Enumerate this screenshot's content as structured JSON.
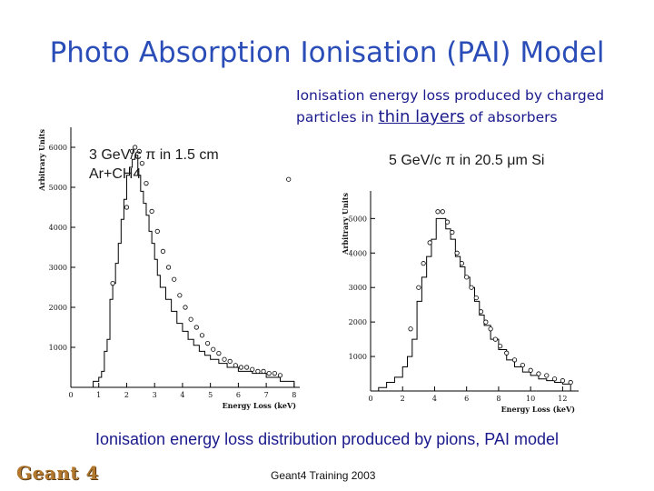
{
  "slide": {
    "title": "Photo Absorption Ionisation (PAI) Model",
    "subtitle_line1": "Ionisation energy loss produced by charged",
    "subtitle_line2_pre": "particles in ",
    "subtitle_line2_highlight": "thin layers",
    "subtitle_line2_post": " of  absorbers",
    "caption": "Ionisation energy loss distribution produced by pions, PAI model",
    "footer": "Geant4 Training 2003",
    "logo": "Geant 4"
  },
  "chart_data": [
    {
      "type": "histogram",
      "label_line1": "3 GeV/c π in 1.5 cm",
      "label_line2": "Ar+CH4",
      "xlabel": "Energy Loss (keV)",
      "ylabel": "Arbitrary Units",
      "xlim": [
        0,
        8.2
      ],
      "ylim": [
        0,
        6500
      ],
      "x_ticks": [
        0,
        1,
        2,
        3,
        4,
        5,
        6,
        7,
        8
      ],
      "y_ticks": [
        1000,
        2000,
        3000,
        4000,
        5000,
        6000
      ],
      "series": [
        {
          "style": "histogram-step",
          "bin_edges": [
            0.8,
            1.0,
            1.1,
            1.2,
            1.3,
            1.4,
            1.5,
            1.6,
            1.7,
            1.8,
            1.9,
            2.0,
            2.1,
            2.2,
            2.3,
            2.4,
            2.5,
            2.6,
            2.7,
            2.8,
            2.9,
            3.0,
            3.1,
            3.2,
            3.4,
            3.6,
            3.8,
            4.0,
            4.2,
            4.4,
            4.6,
            4.8,
            5.0,
            5.3,
            5.6,
            6.0,
            6.5,
            7.0,
            7.5,
            8.0
          ],
          "values": [
            150,
            250,
            400,
            900,
            1200,
            2200,
            2600,
            3100,
            3600,
            4200,
            4700,
            5300,
            5500,
            5700,
            5800,
            5300,
            4900,
            4600,
            4300,
            3900,
            3600,
            3200,
            2800,
            2500,
            2200,
            1900,
            1600,
            1400,
            1200,
            1050,
            900,
            800,
            700,
            600,
            500,
            400,
            350,
            250,
            150
          ]
        },
        {
          "style": "markers",
          "x": [
            1.5,
            2.0,
            2.2,
            2.3,
            2.45,
            2.55,
            2.7,
            2.9,
            3.1,
            3.3,
            3.5,
            3.7,
            3.9,
            4.1,
            4.3,
            4.5,
            4.7,
            4.9,
            5.1,
            5.3,
            5.5,
            5.7,
            5.9,
            6.1,
            6.3,
            6.5,
            6.7,
            6.9,
            7.1,
            7.3,
            7.5,
            7.8
          ],
          "y": [
            2600,
            4500,
            5900,
            6000,
            5900,
            5600,
            5100,
            4400,
            3900,
            3400,
            3000,
            2700,
            2300,
            2000,
            1700,
            1500,
            1300,
            1100,
            950,
            850,
            700,
            650,
            550,
            500,
            500,
            450,
            400,
            400,
            350,
            350,
            300,
            5200
          ]
        }
      ]
    },
    {
      "type": "histogram",
      "label": "5 GeV/c π in 20.5 μm Si",
      "xlabel": "Energy Loss (keV)",
      "ylabel": "Arbitrary Units",
      "xlim": [
        0,
        13
      ],
      "ylim": [
        0,
        5800
      ],
      "x_ticks": [
        0,
        2,
        4,
        6,
        8,
        10,
        12
      ],
      "y_ticks": [
        1000,
        2000,
        3000,
        4000,
        5000
      ],
      "series": [
        {
          "style": "histogram-step",
          "bin_edges": [
            0.5,
            1.0,
            1.5,
            2.0,
            2.3,
            2.6,
            2.9,
            3.2,
            3.5,
            3.8,
            4.1,
            4.4,
            4.7,
            5.0,
            5.3,
            5.6,
            5.9,
            6.2,
            6.5,
            6.8,
            7.1,
            7.5,
            8.0,
            8.5,
            9.0,
            9.5,
            10.0,
            10.5,
            11.0,
            11.5,
            12.0,
            12.5
          ],
          "values": [
            100,
            250,
            400,
            700,
            1000,
            1500,
            2600,
            3300,
            3900,
            4400,
            5000,
            5000,
            4700,
            4400,
            3900,
            3600,
            3300,
            3000,
            2600,
            2200,
            1900,
            1500,
            1200,
            900,
            700,
            550,
            450,
            350,
            300,
            250,
            200
          ]
        },
        {
          "style": "markers",
          "x": [
            2.5,
            3.0,
            3.3,
            3.7,
            4.2,
            4.5,
            4.8,
            5.1,
            5.4,
            5.7,
            6.0,
            6.3,
            6.6,
            6.9,
            7.2,
            7.5,
            7.8,
            8.1,
            8.5,
            9.0,
            9.5,
            10.0,
            10.5,
            11.0,
            11.5,
            12.0,
            12.5
          ],
          "y": [
            1800,
            3000,
            3700,
            4300,
            5200,
            5200,
            4900,
            4600,
            4000,
            3700,
            3300,
            3000,
            2700,
            2300,
            2000,
            1800,
            1500,
            1300,
            1100,
            900,
            750,
            600,
            500,
            450,
            350,
            300,
            250
          ]
        }
      ]
    }
  ]
}
